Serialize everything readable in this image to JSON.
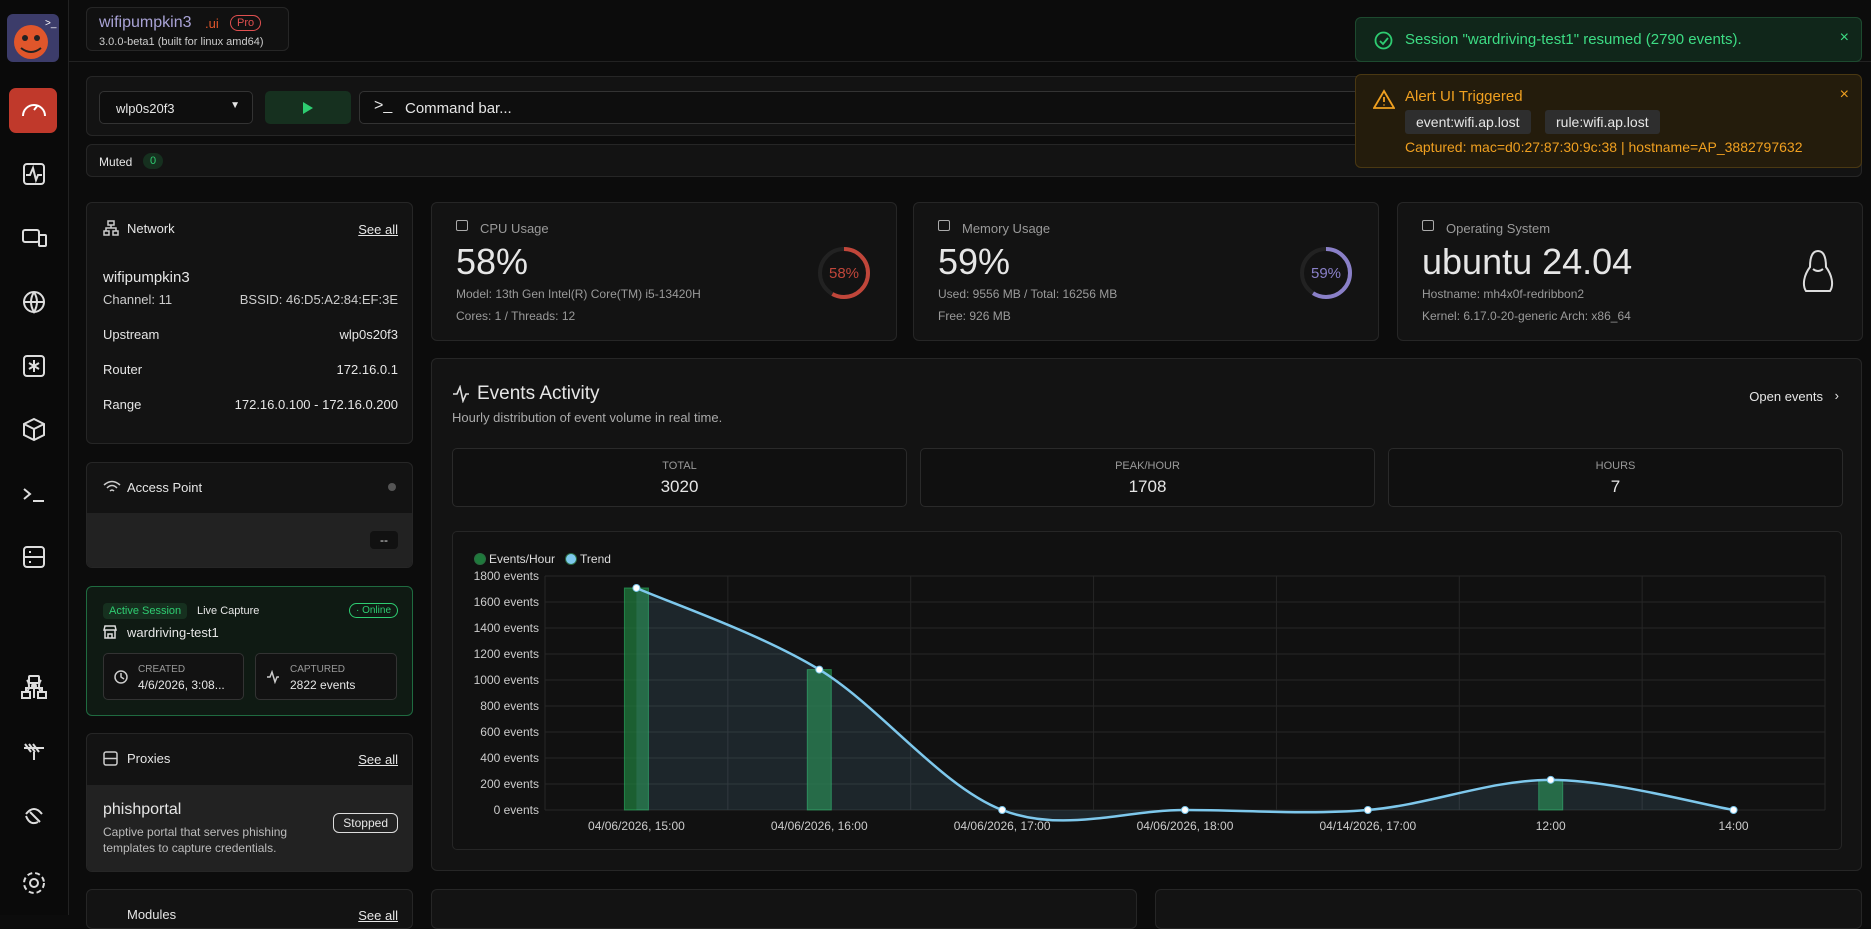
{
  "brand": {
    "name": "wifipumpkin3",
    "suffix": ".ui",
    "badge": "Pro",
    "version": "3.0.0-beta1 (built for linux amd64)"
  },
  "toolbar": {
    "interface": "wlp0s20f3",
    "command_placeholder": "Command bar...",
    "muted_label": "Muted",
    "muted_count": 0
  },
  "network": {
    "title": "Network",
    "see_all": "See all",
    "ssid": "wifipumpkin3",
    "channel": "Channel: 11",
    "bssid": "BSSID: 46:D5:A2:84:EF:3E",
    "rows": [
      [
        "Upstream",
        "wlp0s20f3"
      ],
      [
        "Router",
        "172.16.0.1"
      ],
      [
        "Range",
        "172.16.0.100 - 172.16.0.200"
      ]
    ]
  },
  "access_point": {
    "title": "Access Point",
    "value": "--"
  },
  "session": {
    "tag": "Active Session",
    "mode": "Live Capture",
    "status": "Online",
    "name": "wardriving-test1",
    "created_label": "CREATED",
    "created": "4/6/2026, 3:08...",
    "captured_label": "CAPTURED",
    "captured": "2822 events"
  },
  "proxies": {
    "title": "Proxies",
    "see_all": "See all",
    "name": "phishportal",
    "description": "Captive portal that serves phishing templates to capture credentials.",
    "status": "Stopped"
  },
  "modules": {
    "title": "Modules",
    "see_all": "See all"
  },
  "cpu": {
    "title": "CPU Usage",
    "value": "58%",
    "percent": 58,
    "model": "Model: 13th Gen Intel(R) Core(TM) i5-13420H",
    "cores": "Cores: 1 / Threads: 12"
  },
  "memory": {
    "title": "Memory Usage",
    "value": "59%",
    "percent": 59,
    "used": "Used: 9556 MB / Total: 16256 MB",
    "free": "Free: 926 MB"
  },
  "os": {
    "title": "Operating System",
    "value": "ubuntu 24.04",
    "hostname": "Hostname: mh4x0f-redribbon2",
    "kernel": "Kernel: 6.17.0-20-generic Arch: x86_64"
  },
  "events": {
    "title": "Events Activity",
    "subtitle": "Hourly distribution of event volume in real time.",
    "open": "Open events",
    "stats": [
      {
        "label": "TOTAL",
        "value": 3020
      },
      {
        "label": "PEAK/HOUR",
        "value": 1708
      },
      {
        "label": "HOURS",
        "value": 7
      }
    ]
  },
  "chart": {
    "type": "bar",
    "categories": [
      "04/06/2026, 15:00",
      "04/06/2026, 16:00",
      "04/06/2026, 17:00",
      "04/06/2026, 18:00",
      "04/14/2026, 17:00",
      "12:00",
      "14:00"
    ],
    "series": [
      {
        "name": "Events/Hour",
        "color": "#1f7a3c",
        "values": [
          1708,
          1080,
          0,
          0,
          0,
          232,
          0
        ]
      },
      {
        "name": "Trend",
        "color": "#7ec8ec",
        "type": "line",
        "values": [
          1708,
          1080,
          0,
          0,
          0,
          232,
          0
        ]
      }
    ],
    "ylim": [
      0,
      1800
    ],
    "yticks": [
      {
        "value": 0,
        "label": "0 events"
      },
      {
        "value": 200,
        "label": "200 events"
      },
      {
        "value": 400,
        "label": "400 events"
      },
      {
        "value": 600,
        "label": "600 events"
      },
      {
        "value": 800,
        "label": "800 events"
      },
      {
        "value": 1000,
        "label": "1000 events"
      },
      {
        "value": 1200,
        "label": "1200 events"
      },
      {
        "value": 1400,
        "label": "1400 events"
      },
      {
        "value": 1600,
        "label": "1600 events"
      },
      {
        "value": 1800,
        "label": "1800 events"
      }
    ],
    "grid": true
  },
  "toasts": {
    "info": {
      "text": "Session \"wardriving-test1\" resumed (2790 events).",
      "close": "×"
    },
    "alert": {
      "title": "Alert UI Triggered",
      "tags": [
        "event:wifi.ap.lost",
        "rule:wifi.ap.lost"
      ],
      "detail": "Captured: mac=d0:27:87:30:9c:38 | hostname=AP_3882797632",
      "close": "×"
    }
  }
}
